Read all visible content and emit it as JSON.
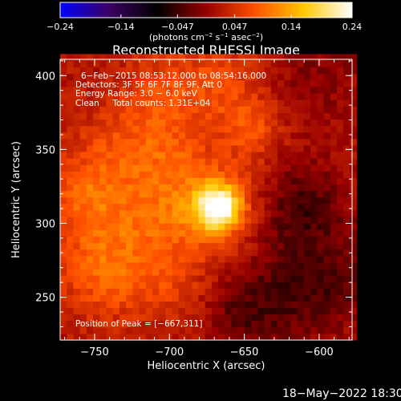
{
  "chart_data": {
    "type": "heatmap",
    "title": "Reconstructed RHESSI Image",
    "xlabel": "Heliocentric X (arcsec)",
    "ylabel": "Heliocentric Y (arcsec)",
    "xlim": [
      -773,
      -578
    ],
    "ylim": [
      221,
      411
    ],
    "x_ticks": [
      -750,
      -700,
      -650,
      -600
    ],
    "x_tick_labels": [
      "−750",
      "−700",
      "−650",
      "−600"
    ],
    "y_ticks": [
      250,
      300,
      350,
      400
    ],
    "y_tick_labels": [
      "250",
      "300",
      "350",
      "400"
    ],
    "colorbar": {
      "range": [
        -0.24,
        0.24
      ],
      "ticks": [
        -0.24,
        -0.14,
        -0.047,
        0.047,
        0.14,
        0.24
      ],
      "tick_labels": [
        "−0.24",
        "−0.14",
        "−0.047",
        "0.047",
        "0.14",
        "0.24"
      ],
      "unit_label_parts": [
        "(photons cm",
        "−2",
        " s",
        "−1",
        " asec",
        "−2",
        ")"
      ],
      "colormap": [
        "#0000ff",
        "#3c0064",
        "#000000",
        "#960000",
        "#ff5000",
        "#ffc800",
        "#ffffff"
      ]
    },
    "peak": [
      -667,
      311
    ],
    "blobs": [
      {
        "x": -667,
        "y": 311,
        "amp": 0.19,
        "sigma": 10
      },
      {
        "x": -667,
        "y": 311,
        "amp": 0.055,
        "sigma": 24
      },
      {
        "x": -690,
        "y": 314,
        "amp": 0.045,
        "sigma": 22
      },
      {
        "x": -735,
        "y": 292,
        "amp": 0.06,
        "sigma": 28
      },
      {
        "x": -745,
        "y": 262,
        "amp": 0.04,
        "sigma": 20
      },
      {
        "x": -730,
        "y": 350,
        "amp": 0.045,
        "sigma": 22
      },
      {
        "x": -700,
        "y": 355,
        "amp": 0.03,
        "sigma": 18
      },
      {
        "x": -645,
        "y": 365,
        "amp": 0.055,
        "sigma": 14
      },
      {
        "x": -665,
        "y": 395,
        "amp": 0.045,
        "sigma": 20
      },
      {
        "x": -705,
        "y": 392,
        "amp": 0.04,
        "sigma": 20
      },
      {
        "x": -758,
        "y": 322,
        "amp": 0.045,
        "sigma": 18
      },
      {
        "x": -700,
        "y": 258,
        "amp": 0.03,
        "sigma": 18
      },
      {
        "x": -600,
        "y": 400,
        "amp": -0.03,
        "sigma": 25
      },
      {
        "x": -612,
        "y": 310,
        "amp": -0.065,
        "sigma": 22
      },
      {
        "x": -625,
        "y": 250,
        "amp": -0.055,
        "sigma": 26
      },
      {
        "x": -585,
        "y": 260,
        "amp": -0.04,
        "sigma": 18
      },
      {
        "x": -655,
        "y": 235,
        "amp": -0.03,
        "sigma": 16
      }
    ],
    "background": 0.02,
    "pixel_size_arcsec": 4.4
  },
  "annotations": {
    "time_range": "6−Feb−2015 08:53:12.000 to 08:54:16.000",
    "detectors": "Detectors: 3F 5F 6F 7F 8F 9F, Att 0",
    "energy_range": "Energy Range: 3.0 − 6.0 keV",
    "clean": "Clean     Total counts: 1.31E+04",
    "peak_position": "Position of Peak = [−667,311]"
  },
  "footer": {
    "timestamp": "18−May−2022 18:30"
  }
}
